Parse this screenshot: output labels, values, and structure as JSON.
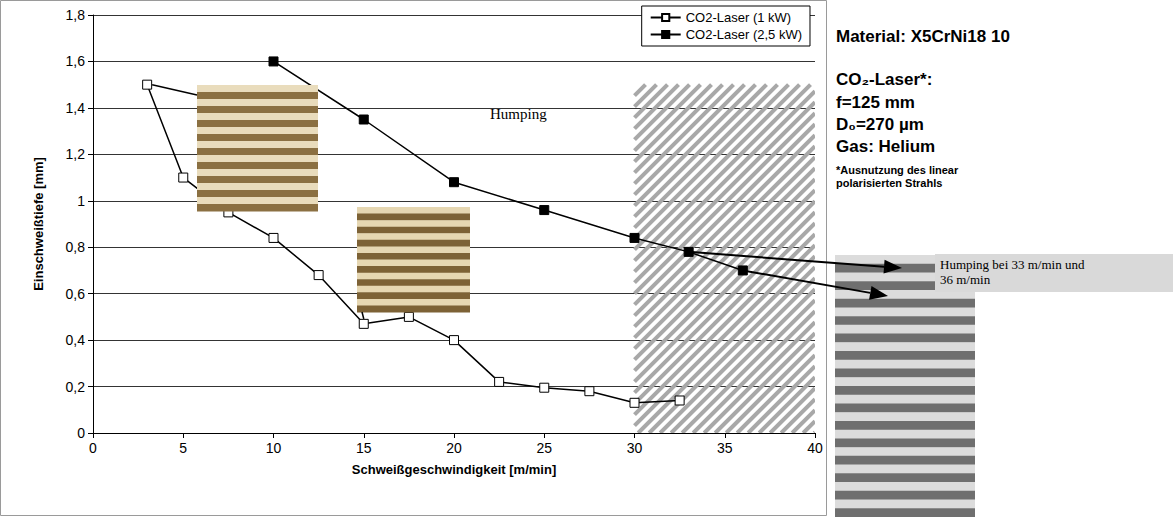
{
  "chart_data": {
    "type": "line",
    "x_label": "Schweißgeschwindigkeit [m/min]",
    "y_label": "Einschweißtiefe [mm]",
    "series": [
      {
        "name": "CO2-Laser (1 kW)",
        "color": "#000000",
        "marker": "square-open",
        "x": [
          3,
          5,
          7.5,
          10,
          12.5,
          15,
          17.5,
          20,
          22.5,
          25,
          27.5,
          30,
          32.5
        ],
        "values": [
          1.5,
          1.1,
          0.95,
          0.84,
          0.68,
          0.47,
          0.5,
          0.4,
          0.22,
          0.195,
          0.18,
          0.13,
          0.14
        ]
      },
      {
        "name": "CO2-Laser (2,5 kW)",
        "color": "#000000",
        "marker": "square",
        "x": [
          10,
          15,
          20,
          25,
          30,
          33,
          36
        ],
        "values": [
          1.6,
          1.35,
          1.08,
          0.96,
          0.84,
          0.78,
          0.7
        ]
      }
    ],
    "xlim": [
      0,
      40
    ],
    "xticks": [
      0,
      5,
      10,
      15,
      20,
      25,
      30,
      35,
      40
    ],
    "ylim": [
      0,
      1.8
    ],
    "yticks": [
      0,
      {
        "value": 0.2,
        "label": "0,2"
      },
      {
        "value": 0.4,
        "label": "0,4"
      },
      {
        "value": 0.6,
        "label": "0,6"
      },
      {
        "value": 0.8,
        "label": "0,8"
      },
      1,
      {
        "value": 1.2,
        "label": "1,2"
      },
      {
        "value": 1.4,
        "label": "1,4"
      },
      {
        "value": 1.6,
        "label": "1,6"
      },
      {
        "value": 1.8,
        "label": "1,8"
      }
    ],
    "grid": "y",
    "legend": "top-right",
    "annotation": "Humping",
    "shaded_region": {
      "x": [
        30,
        40
      ],
      "y": [
        0,
        1.5
      ]
    },
    "side_text": {
      "material": "Material: X5CrNi18 10",
      "laser": "CO₂-Laser*:",
      "params": [
        "f=125 mm",
        "D₀=270 µm",
        "Gas: Helium"
      ],
      "footnote": "*Ausnutzung des linear polarisierten Strahls",
      "image_caption": "Humping bei 33 m/min und 36 m/min"
    }
  }
}
